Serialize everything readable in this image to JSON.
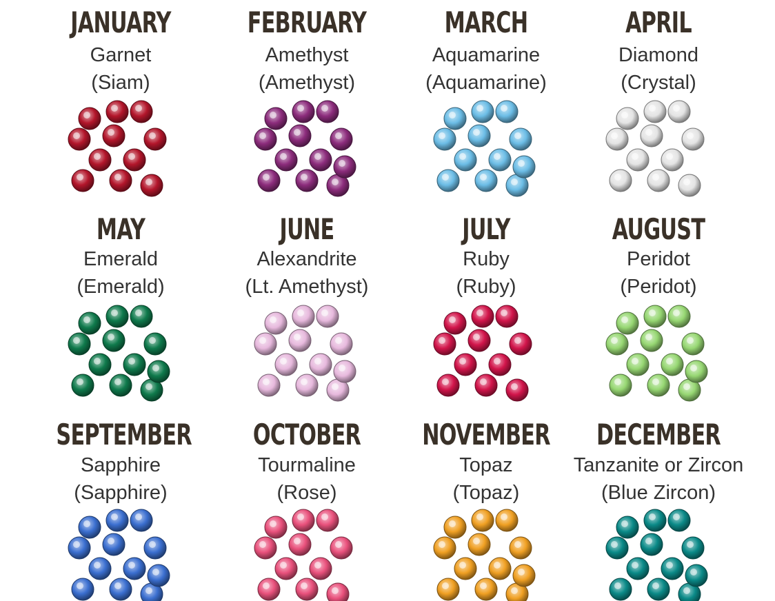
{
  "months": [
    {
      "month": "JANUARY",
      "stone": "Garnet",
      "crystal": "(Siam)",
      "color": "#b3162b"
    },
    {
      "month": "FEBRUARY",
      "stone": "Amethyst",
      "crystal": "(Amethyst)",
      "color": "#8c2c7c"
    },
    {
      "month": "MARCH",
      "stone": "Aquamarine",
      "crystal": "(Aquamarine)",
      "color": "#6cbde6"
    },
    {
      "month": "APRIL",
      "stone": "Diamond",
      "crystal": "(Crystal)",
      "color": "#e4e4e4"
    },
    {
      "month": "MAY",
      "stone": "Emerald",
      "crystal": "(Emerald)",
      "color": "#0f7a4c"
    },
    {
      "month": "JUNE",
      "stone": "Alexandrite",
      "crystal": "(Lt. Amethyst)",
      "color": "#e7b9dd"
    },
    {
      "month": "JULY",
      "stone": "Ruby",
      "crystal": "(Ruby)",
      "color": "#d2154b"
    },
    {
      "month": "AUGUST",
      "stone": "Peridot",
      "crystal": "(Peridot)",
      "color": "#97d773"
    },
    {
      "month": "SEPTEMBER",
      "stone": "Sapphire",
      "crystal": "(Sapphire)",
      "color": "#3b6fd0"
    },
    {
      "month": "OCTOBER",
      "stone": "Tourmaline",
      "crystal": "(Rose)",
      "color": "#e9517c"
    },
    {
      "month": "NOVEMBER",
      "stone": "Topaz",
      "crystal": "(Topaz)",
      "color": "#f0a023"
    },
    {
      "month": "DECEMBER",
      "stone": "Tanzanite or Zircon",
      "crystal": "(Blue Zircon)",
      "color": "#0b8a88"
    }
  ]
}
